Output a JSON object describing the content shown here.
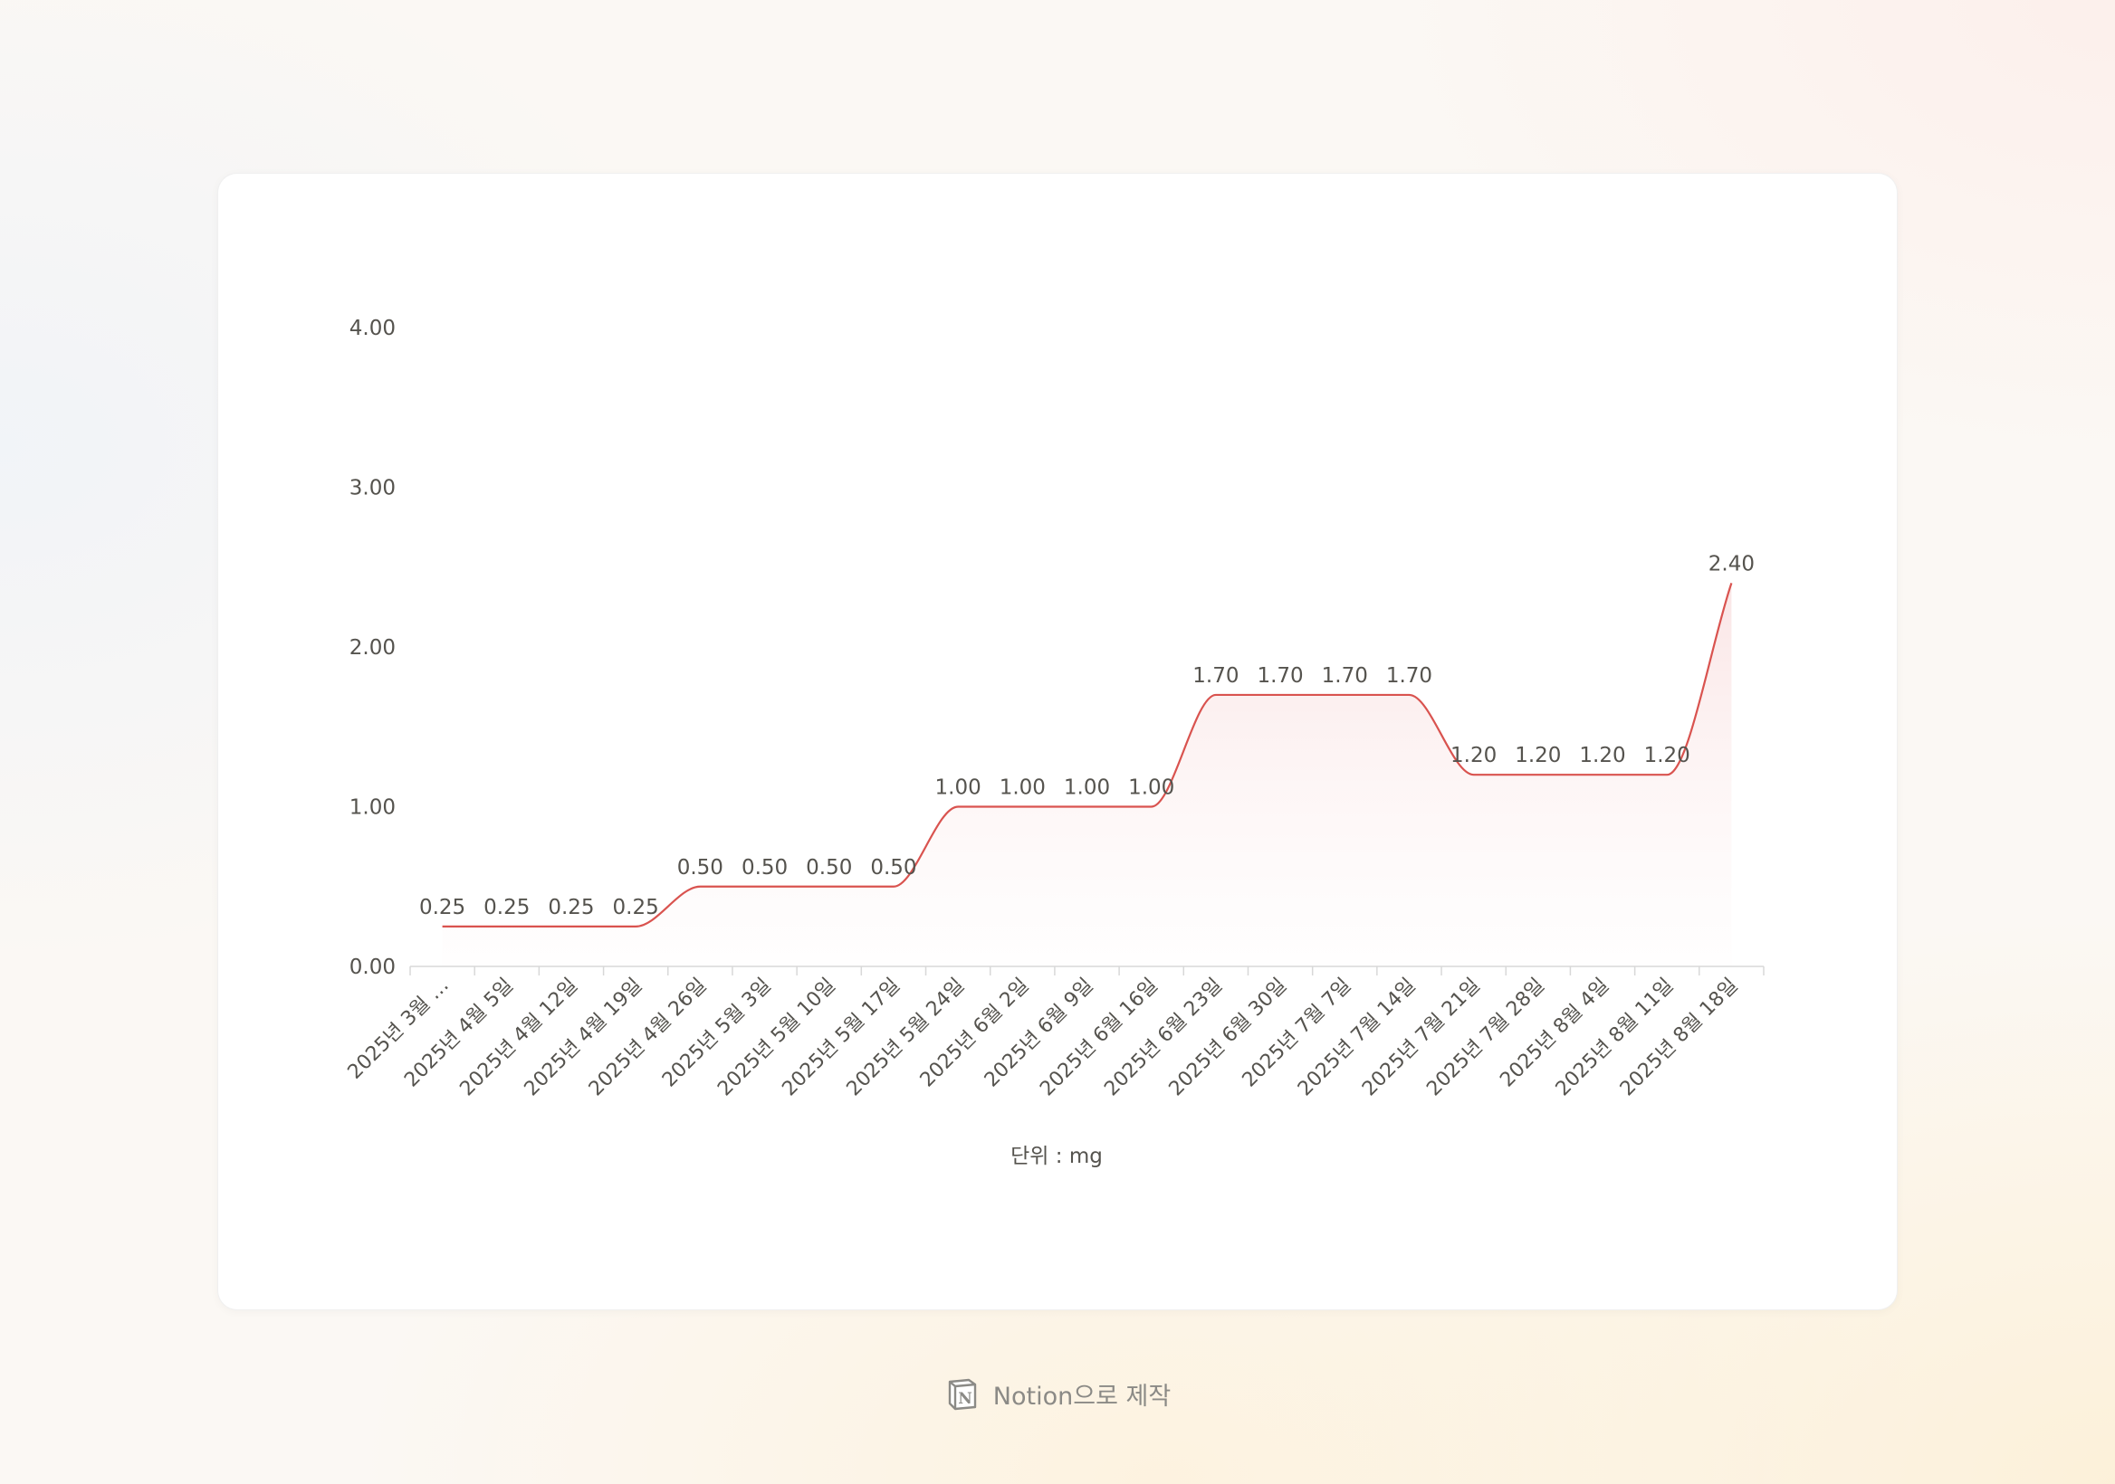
{
  "chart_data": {
    "type": "area",
    "categories": [
      "2025년 3월 …",
      "2025년 4월 5일",
      "2025년 4월 12일",
      "2025년 4월 19일",
      "2025년 4월 26일",
      "2025년 5월 3일",
      "2025년 5월 10일",
      "2025년 5월 17일",
      "2025년 5월 24일",
      "2025년 6월 2일",
      "2025년 6월 9일",
      "2025년 6월 16일",
      "2025년 6월 23일",
      "2025년 6월 30일",
      "2025년 7월 7일",
      "2025년 7월 14일",
      "2025년 7월 21일",
      "2025년 7월 28일",
      "2025년 8월 4일",
      "2025년 8월 11일",
      "2025년 8월 18일"
    ],
    "values": [
      0.25,
      0.25,
      0.25,
      0.25,
      0.5,
      0.5,
      0.5,
      0.5,
      1.0,
      1.0,
      1.0,
      1.0,
      1.7,
      1.7,
      1.7,
      1.7,
      1.2,
      1.2,
      1.2,
      1.2,
      2.4
    ],
    "data_labels": [
      "0.25",
      "0.25",
      "0.25",
      "0.25",
      "0.50",
      "0.50",
      "0.50",
      "0.50",
      "1.00",
      "1.00",
      "1.00",
      "1.00",
      "1.70",
      "1.70",
      "1.70",
      "1.70",
      "1.20",
      "1.20",
      "1.20",
      "1.20",
      "2.40"
    ],
    "y_ticks": [
      "0.00",
      "1.00",
      "2.00",
      "3.00",
      "4.00"
    ],
    "ylim": [
      0,
      4
    ],
    "xlabel": "단위 : mg",
    "ylabel": "",
    "title": "",
    "grid": false,
    "line_color": "#d9534f",
    "fill_color": "#f3c1c1"
  },
  "footer": {
    "text": "Notion으로 제작",
    "icon": "notion-logo-icon"
  }
}
